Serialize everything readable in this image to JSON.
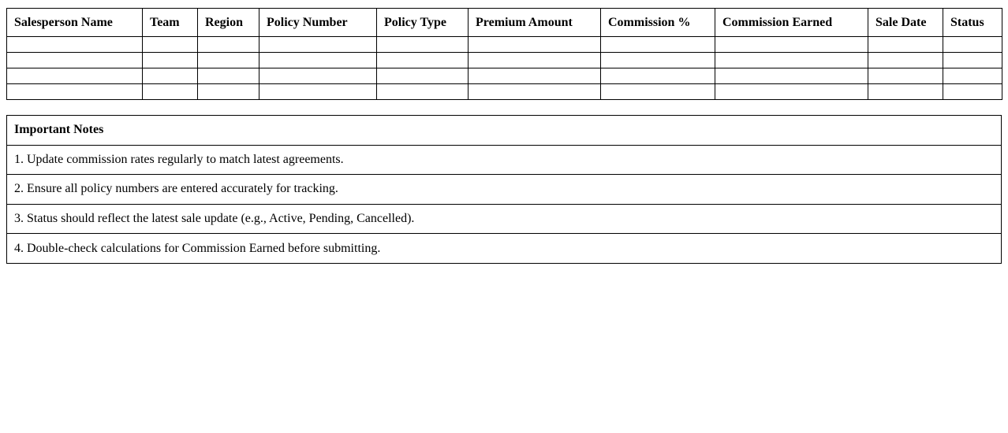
{
  "sales_table": {
    "columns": [
      {
        "label": "Salesperson Name",
        "width": 172
      },
      {
        "label": "Team",
        "width": 70
      },
      {
        "label": "Region",
        "width": 78
      },
      {
        "label": "Policy Number",
        "width": 149
      },
      {
        "label": "Policy Type",
        "width": 116
      },
      {
        "label": "Premium Amount",
        "width": 168
      },
      {
        "label": "Commission %",
        "width": 145
      },
      {
        "label": "Commission Earned",
        "width": 194
      },
      {
        "label": "Sale Date",
        "width": 95
      },
      {
        "label": "Status",
        "width": 75
      }
    ],
    "rows": [
      [
        "",
        "",
        "",
        "",
        "",
        "",
        "",
        "",
        "",
        ""
      ],
      [
        "",
        "",
        "",
        "",
        "",
        "",
        "",
        "",
        "",
        ""
      ],
      [
        "",
        "",
        "",
        "",
        "",
        "",
        "",
        "",
        "",
        ""
      ],
      [
        "",
        "",
        "",
        "",
        "",
        "",
        "",
        "",
        "",
        ""
      ]
    ]
  },
  "notes": {
    "title": "Important Notes",
    "items": [
      "1. Update commission rates regularly to match latest agreements.",
      "2. Ensure all policy numbers are entered accurately for tracking.",
      "3. Status should reflect the latest sale update (e.g., Active, Pending, Cancelled).",
      "4. Double-check calculations for Commission Earned before submitting."
    ]
  },
  "colors": {
    "border": "#000000",
    "text": "#000000",
    "background": "#ffffff"
  }
}
